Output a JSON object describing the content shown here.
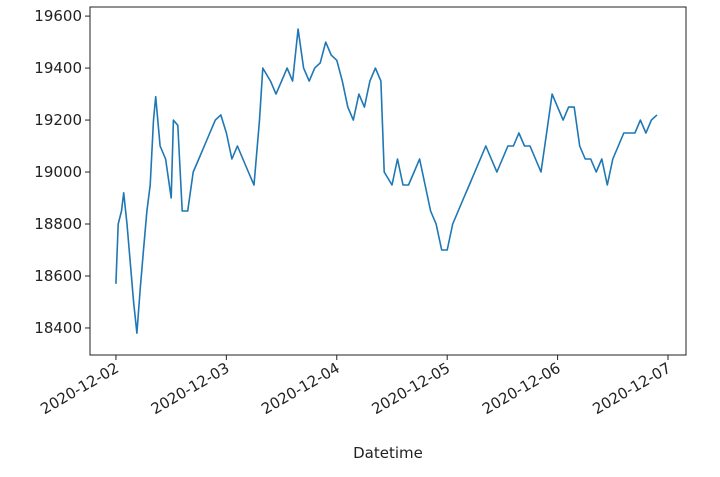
{
  "chart_data": {
    "type": "line",
    "x_label": "Datetime",
    "x": [
      0,
      0.02,
      0.05,
      0.07,
      0.1,
      0.13,
      0.16,
      0.19,
      0.22,
      0.25,
      0.28,
      0.31,
      0.34,
      0.36,
      0.4,
      0.45,
      0.5,
      0.52,
      0.56,
      0.6,
      0.65,
      0.7,
      0.75,
      0.8,
      0.85,
      0.9,
      0.95,
      1,
      1.05,
      1.1,
      1.15,
      1.2,
      1.25,
      1.3,
      1.33,
      1.4,
      1.45,
      1.5,
      1.55,
      1.6,
      1.65,
      1.7,
      1.75,
      1.8,
      1.85,
      1.9,
      1.95,
      2,
      2.05,
      2.1,
      2.15,
      2.2,
      2.25,
      2.3,
      2.35,
      2.4,
      2.43,
      2.5,
      2.55,
      2.6,
      2.65,
      2.7,
      2.75,
      2.8,
      2.85,
      2.9,
      2.95,
      3,
      3.05,
      3.1,
      3.15,
      3.2,
      3.25,
      3.3,
      3.35,
      3.4,
      3.45,
      3.5,
      3.55,
      3.6,
      3.65,
      3.7,
      3.75,
      3.8,
      3.85,
      3.9,
      3.95,
      4,
      4.05,
      4.1,
      4.15,
      4.2,
      4.25,
      4.3,
      4.35,
      4.4,
      4.45,
      4.5,
      4.55,
      4.6,
      4.65,
      4.7,
      4.75,
      4.8,
      4.85,
      4.9
    ],
    "series": [
      {
        "color": "#1f77b4",
        "values": [
          18570,
          18800,
          18850,
          18920,
          18800,
          18650,
          18500,
          18380,
          18550,
          18700,
          18850,
          18950,
          19200,
          19290,
          19100,
          19050,
          18900,
          19200,
          19180,
          18850,
          18850,
          19000,
          19050,
          19100,
          19150,
          19200,
          19220,
          19150,
          19050,
          19100,
          19050,
          19000,
          18950,
          19200,
          19400,
          19350,
          19300,
          19350,
          19400,
          19350,
          19550,
          19400,
          19350,
          19400,
          19420,
          19500,
          19450,
          19430,
          19350,
          19250,
          19200,
          19300,
          19250,
          19350,
          19400,
          19350,
          19000,
          18950,
          19050,
          18950,
          18950,
          19000,
          19050,
          18950,
          18850,
          18800,
          18700,
          18700,
          18800,
          18850,
          18900,
          18950,
          19000,
          19050,
          19100,
          19050,
          19000,
          19050,
          19100,
          19100,
          19150,
          19100,
          19100,
          19050,
          19000,
          19150,
          19300,
          19250,
          19200,
          19250,
          19250,
          19100,
          19050,
          19050,
          19000,
          19050,
          18950,
          19050,
          19100,
          19150,
          19150,
          19150,
          19200,
          19150,
          19200,
          19220
        ]
      }
    ],
    "xlim": [
      -0.235,
      5.163
    ],
    "xticks": [
      {
        "value": 0,
        "label": "2020-12-02"
      },
      {
        "value": 1,
        "label": "2020-12-03"
      },
      {
        "value": 2,
        "label": "2020-12-04"
      },
      {
        "value": 3,
        "label": "2020-12-05"
      },
      {
        "value": 4,
        "label": "2020-12-06"
      },
      {
        "value": 5,
        "label": "2020-12-07"
      }
    ],
    "ylim": [
      18296,
      19635
    ],
    "yticks": [
      18400,
      18600,
      18800,
      19000,
      19200,
      19400,
      19600
    ]
  }
}
